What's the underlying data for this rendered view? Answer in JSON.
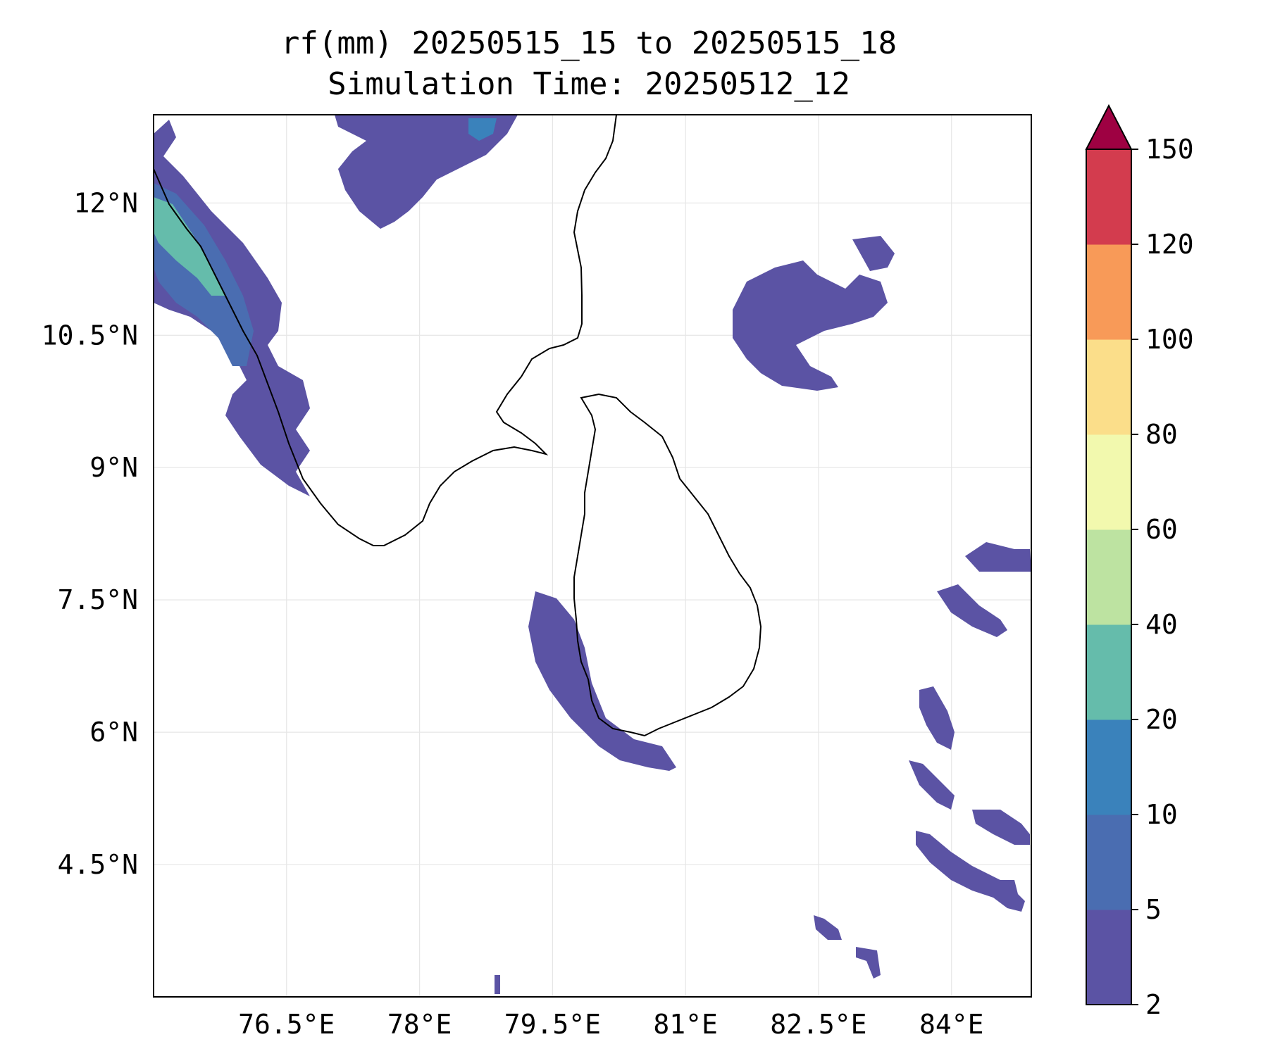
{
  "title": {
    "line1": "rf(mm) 20250515_15 to 20250515_18",
    "line2": "Simulation Time: 20250512_12"
  },
  "map": {
    "lon_range": [
      75.0,
      84.9
    ],
    "lat_range": [
      3.0,
      13.0
    ],
    "lon_ticks": [
      {
        "value": 76.5,
        "label": "76.5°E"
      },
      {
        "value": 78.0,
        "label": "78°E"
      },
      {
        "value": 79.5,
        "label": "79.5°E"
      },
      {
        "value": 81.0,
        "label": "81°E"
      },
      {
        "value": 82.5,
        "label": "82.5°E"
      },
      {
        "value": 84.0,
        "label": "84°E"
      }
    ],
    "lat_ticks": [
      {
        "value": 12.0,
        "label": "12°N"
      },
      {
        "value": 10.5,
        "label": "10.5°N"
      },
      {
        "value": 9.0,
        "label": "9°N"
      },
      {
        "value": 7.5,
        "label": "7.5°N"
      },
      {
        "value": 6.0,
        "label": "6°N"
      },
      {
        "value": 4.5,
        "label": "4.5°N"
      }
    ],
    "grid": true,
    "coastline_color": "#000000"
  },
  "colorbar": {
    "levels": [
      {
        "value": 2,
        "label": "2"
      },
      {
        "value": 5,
        "label": "5"
      },
      {
        "value": 10,
        "label": "10"
      },
      {
        "value": 20,
        "label": "20"
      },
      {
        "value": 40,
        "label": "40"
      },
      {
        "value": 60,
        "label": "60"
      },
      {
        "value": 80,
        "label": "80"
      },
      {
        "value": 100,
        "label": "100"
      },
      {
        "value": 120,
        "label": "120"
      },
      {
        "value": 150,
        "label": "150"
      }
    ],
    "colors": [
      "#5b53a4",
      "#4a6db1",
      "#3a82bb",
      "#65bcab",
      "#bde3a1",
      "#f2f9ae",
      "#fbde8a",
      "#f89a58",
      "#d33c4e"
    ],
    "extend_color": "#9e0142",
    "extend": "max"
  }
}
